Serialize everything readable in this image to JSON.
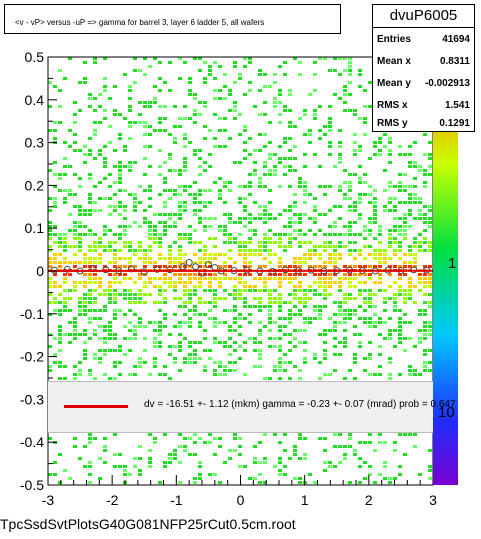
{
  "title": "<v - vP>      versus  -uP =>  gamma for barrel 3, layer 6 ladder 5, all wafers",
  "footer": "TpcSsdSvtPlotsG40G081NFP25rCut0.5cm.root",
  "stats": {
    "name": "dvuP6005",
    "rows": [
      {
        "label": "Entries",
        "value": "41694"
      },
      {
        "label": "Mean x",
        "value": "0.8311"
      },
      {
        "label": "Mean y",
        "value": "-0.002913"
      },
      {
        "label": "RMS x",
        "value": "1.541"
      },
      {
        "label": "RMS y",
        "value": "0.1291"
      }
    ]
  },
  "legend": {
    "text": "dv =  -16.51 +-  1.12 (mkm) gamma =   -0.23 +-  0.07 (mrad) prob = 0.647",
    "line_color": "#e00000"
  },
  "colorbar": {
    "tick_labels": [
      "10",
      "1",
      "10"
    ]
  },
  "chart_data": {
    "type": "heatmap",
    "xlim": [
      -3,
      3
    ],
    "ylim": [
      -0.5,
      0.5
    ],
    "x_ticks": [
      "-3",
      "-2",
      "-1",
      "0",
      "1",
      "2",
      "3"
    ],
    "y_ticks": [
      "-0.5",
      "-0.4",
      "-0.3",
      "-0.2",
      "-0.1",
      "0",
      "0.1",
      "0.2",
      "0.3",
      "0.4",
      "0.5"
    ],
    "y_tick_values": [
      -0.5,
      -0.4,
      -0.3,
      -0.2,
      -0.1,
      0,
      0.1,
      0.2,
      0.3,
      0.4,
      0.5
    ],
    "x_tick_values": [
      -3,
      -2,
      -1,
      0,
      1,
      2,
      3
    ],
    "density_center": 0.0,
    "fit_line": {
      "x": [
        -3,
        3
      ],
      "y": [
        2e-05,
        0.0007
      ]
    },
    "profile_points": {
      "x": [
        -2.9,
        -2.7,
        -2.5,
        -2.3,
        -2.1,
        -1.9,
        -1.7,
        -1.5,
        -1.3,
        -1.1,
        -0.9,
        -0.8,
        -0.7,
        -0.6,
        -0.5,
        -0.4,
        -0.3,
        -0.1,
        0.1,
        0.3,
        0.5,
        0.7,
        0.9,
        1.1,
        1.3,
        1.5,
        1.7,
        1.9,
        2.1,
        2.3,
        2.5,
        2.7,
        2.9
      ],
      "y": [
        0.002,
        0.004,
        0.0,
        0.006,
        0.003,
        0.001,
        0.005,
        -0.002,
        0.004,
        0.003,
        0.01,
        0.02,
        0.01,
        -0.005,
        0.015,
        0.008,
        0.0,
        0.001,
        0.002,
        0.0,
        -0.001,
        0.003,
        0.001,
        0.002,
        0.0,
        0.001,
        0.002,
        0.001,
        0.0,
        0.002,
        0.001,
        0.003,
        0.002
      ]
    },
    "grid": false
  }
}
